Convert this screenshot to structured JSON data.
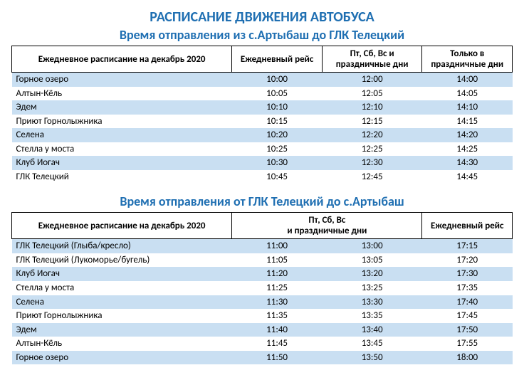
{
  "colors": {
    "title": "#1f6fb2",
    "stripe": "#c9dff2",
    "text": "#000000",
    "background": "#ffffff",
    "border": "#000000"
  },
  "main_title": "РАСПИСАНИЕ ДВИЖЕНИЯ АВТОБУСА",
  "table1": {
    "subtitle": "Время отправления из с.Артыбаш до ГЛК Телецкий",
    "col_widths": [
      "44%",
      "18%",
      "20%",
      "18%"
    ],
    "headers": [
      "Ежедневное расписание на декабрь 2020",
      "Ежедневный рейс",
      "Пт, Сб, Вс и праздничные дни",
      "Только в праздничные дни"
    ],
    "rows": [
      {
        "stop": "Горное озеро",
        "t": [
          "10:00",
          "12:00",
          "14:00"
        ]
      },
      {
        "stop": "Алтын-Кёль",
        "t": [
          "10:05",
          "12:05",
          "14:05"
        ]
      },
      {
        "stop": "Эдем",
        "t": [
          "10:10",
          "12:10",
          "14:10"
        ]
      },
      {
        "stop": "Приют Горнолыжника",
        "t": [
          "10:15",
          "12:15",
          "14:15"
        ]
      },
      {
        "stop": "Селена",
        "t": [
          "10:20",
          "12:20",
          "14:20"
        ]
      },
      {
        "stop": "Стелла у моста",
        "t": [
          "10:25",
          "12:25",
          "14:25"
        ]
      },
      {
        "stop": "Клуб Иогач",
        "t": [
          "10:30",
          "12:30",
          "14:30"
        ]
      },
      {
        "stop": "ГЛК Телецкий",
        "t": [
          "10:45",
          "12:45",
          "14:45"
        ]
      }
    ]
  },
  "table2": {
    "subtitle": "Время отправления от ГЛК Телецкий до с.Артыбаш",
    "col_widths": [
      "44%",
      "18%",
      "20%",
      "18%"
    ],
    "header_stop": "Ежедневное расписание на декабрь 2020",
    "header_group_top": "Пт, Сб, Вс",
    "header_group_bottom": "и праздничные дни",
    "header_daily": "Ежедневный рейс",
    "rows": [
      {
        "stop": "ГЛК Телецкий (Глыба/кресло)",
        "t": [
          "11:00",
          "13:00",
          "17:15"
        ]
      },
      {
        "stop": "ГЛК Телецкий (Лукоморье/бугель)",
        "t": [
          "11:05",
          "13:05",
          "17:20"
        ]
      },
      {
        "stop": "Клуб Иогач",
        "t": [
          "11:20",
          "13:20",
          "17:30"
        ]
      },
      {
        "stop": "Стелла у моста",
        "t": [
          "11:25",
          "13:25",
          "17:35"
        ]
      },
      {
        "stop": "Селена",
        "t": [
          "11:30",
          "13:30",
          "17:40"
        ]
      },
      {
        "stop": "Приют Горнолыжника",
        "t": [
          "11:35",
          "13:35",
          "17:45"
        ]
      },
      {
        "stop": "Эдем",
        "t": [
          "11:40",
          "13:40",
          "17:50"
        ]
      },
      {
        "stop": "Алтын-Кёль",
        "t": [
          "11:45",
          "13:45",
          "17:55"
        ]
      },
      {
        "stop": "Горное озеро",
        "t": [
          "11:50",
          "13:50",
          "18:00"
        ]
      }
    ]
  }
}
